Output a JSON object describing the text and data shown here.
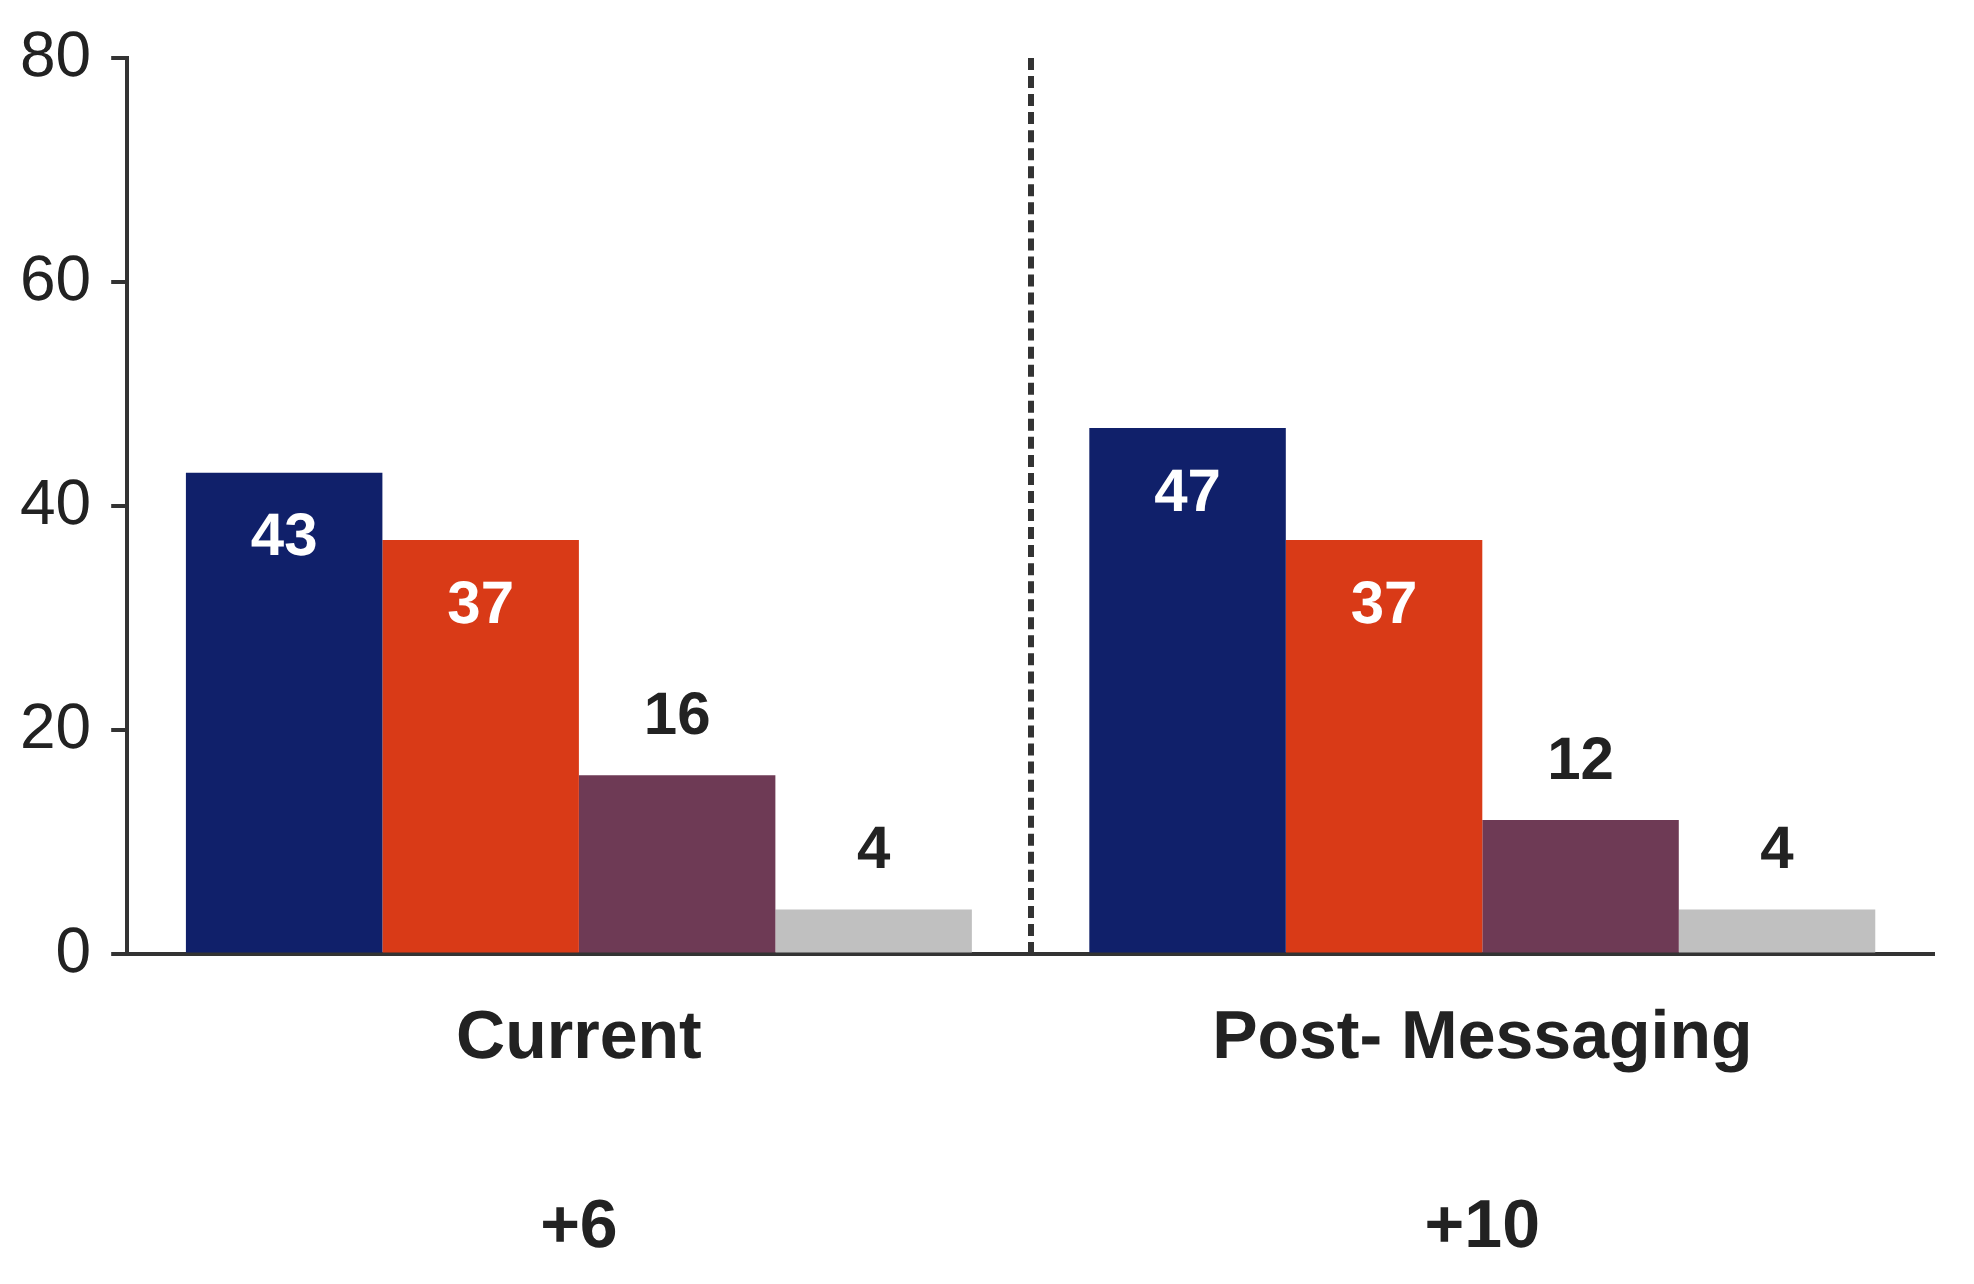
{
  "chart_data": {
    "type": "bar",
    "categories": [
      "Current",
      "Post- Messaging"
    ],
    "series": [
      {
        "color": "#10206a",
        "values": [
          43,
          47
        ]
      },
      {
        "color": "#d93a17",
        "values": [
          37,
          37
        ]
      },
      {
        "color": "#6e3a55",
        "values": [
          16,
          12
        ]
      },
      {
        "color": "#c0c0c0",
        "values": [
          4,
          4
        ]
      }
    ],
    "ylim": [
      0,
      80
    ],
    "yticks": [
      0,
      20,
      40,
      60,
      80
    ],
    "grid": false,
    "legend": false,
    "data_labels": true,
    "annotations": [
      "+6",
      "+10"
    ]
  }
}
